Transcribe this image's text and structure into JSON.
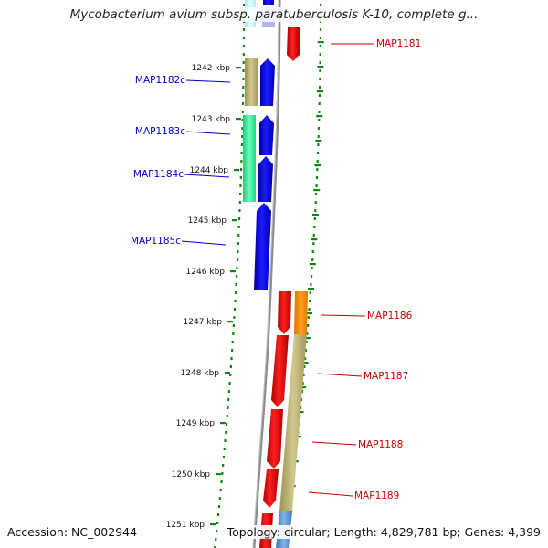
{
  "title": "Mycobacterium avium subsp. paratuberculosis K-10, complete g...",
  "footer": {
    "accession": "Accession: NC_002944",
    "topology": "Topology: circular; Length: 4,829,781 bp; Genes: 4,399"
  },
  "ruler_ticks": [
    "1242 kbp",
    "1243 kbp",
    "1244 kbp",
    "1245 kbp",
    "1246 kbp",
    "1247 kbp",
    "1248 kbp",
    "1249 kbp",
    "1250 kbp",
    "1251 kbp"
  ],
  "genes": {
    "reverse_strand": [
      {
        "label": "MAP1182c",
        "color": "#0000cc"
      },
      {
        "label": "MAP1183c",
        "color": "#0000cc"
      },
      {
        "label": "MAP1184c",
        "color": "#0000cc"
      },
      {
        "label": "MAP1185c",
        "color": "#0000cc"
      }
    ],
    "forward_strand": [
      {
        "label": "MAP1181",
        "color": "#cc0000"
      },
      {
        "label": "MAP1186",
        "color": "#cc0000"
      },
      {
        "label": "MAP1187",
        "color": "#cc0000"
      },
      {
        "label": "MAP1188",
        "color": "#cc0000"
      },
      {
        "label": "MAP1189",
        "color": "#cc0000"
      }
    ]
  },
  "colors": {
    "cds_forward": "#ff0000",
    "cds_reverse": "#0000ee",
    "backbone": "#888888",
    "gc_tick": "#118811",
    "feature_tan": "#b9ae6a",
    "feature_green": "#33ee99",
    "feature_orange": "#ff8c00",
    "feature_cyan": "#bff2f2",
    "feature_steel": "#5a8fcc"
  }
}
